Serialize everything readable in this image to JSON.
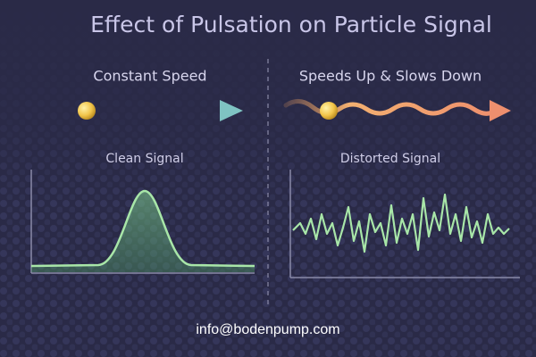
{
  "header": {
    "title": "Effect of Pulsation on Particle Signal"
  },
  "panels": [
    {
      "heading": "Constant Speed",
      "signal_label": "Clean Signal"
    },
    {
      "heading": "Speeds Up & Slows Down",
      "signal_label": "Distorted Signal"
    }
  ],
  "footer": {
    "contact": "info@bodenpump.com"
  }
}
